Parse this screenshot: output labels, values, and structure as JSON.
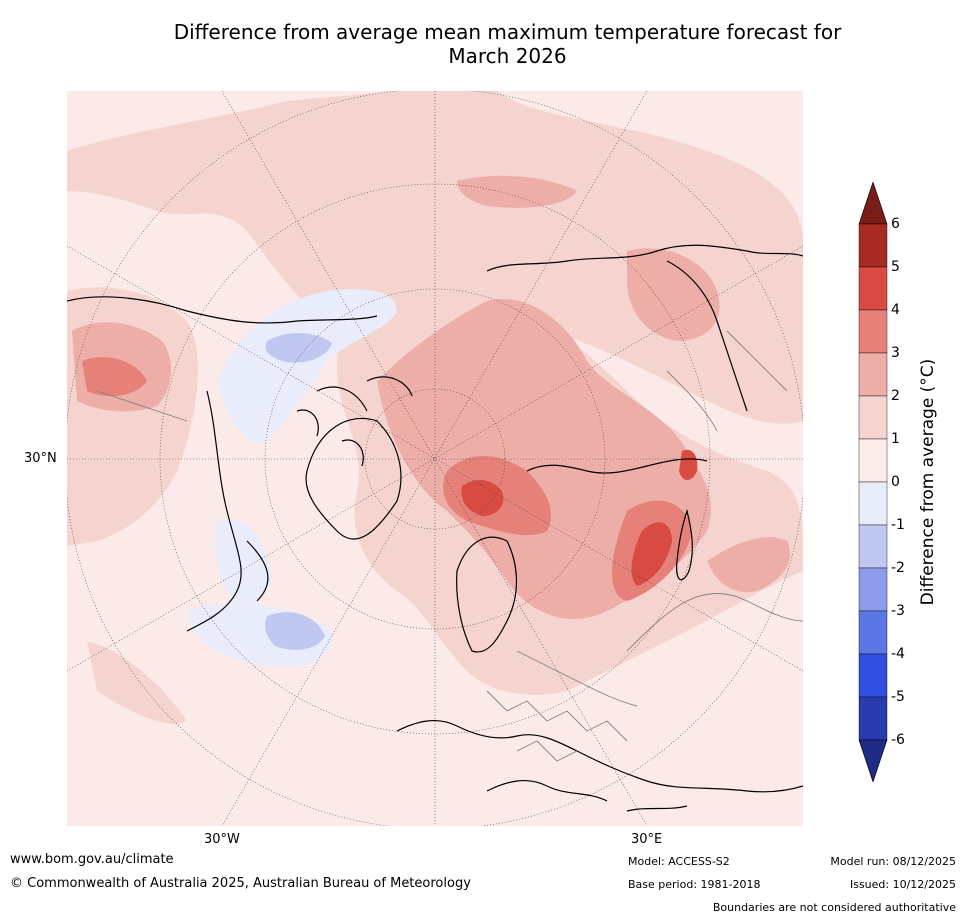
{
  "title_line1": "Difference from average mean maximum temperature forecast for",
  "title_line2": "March 2026",
  "map": {
    "projection": "North Polar Stereographic",
    "lat_label": "30°N",
    "lon_labels": [
      "30°W",
      "30°E"
    ],
    "colors": {
      "ocean_bg": "#fbeae8",
      "land_edge": "#000000",
      "borders": "#808080"
    },
    "regions": [
      {
        "name": "arctic-warm-core",
        "level": "2 to 3"
      },
      {
        "name": "north-pacific-warm",
        "level": "2 to 3"
      },
      {
        "name": "central-russia-warm",
        "level": "3 to 5"
      },
      {
        "name": "canada-cool",
        "level": "-1 to -2"
      },
      {
        "name": "north-atlantic-cool",
        "level": "-1 to -2"
      }
    ]
  },
  "colorbar": {
    "title": "Difference from average (°C)",
    "ticks": [
      "6",
      "5",
      "4",
      "3",
      "2",
      "1",
      "0",
      "-1",
      "-2",
      "-3",
      "-4",
      "-5",
      "-6"
    ],
    "colors": [
      "#a82a24",
      "#d94b42",
      "#e6817a",
      "#eeaea8",
      "#f5d4d0",
      "#fcecea",
      "#e9edfb",
      "#c0c8f1",
      "#8c9cea",
      "#5d76e3",
      "#314fdf",
      "#2a3bb0"
    ],
    "over_color": "#7a1d18",
    "under_color": "#1f2b84"
  },
  "footer": {
    "website": "www.bom.gov.au/climate",
    "copyright": "© Commonwealth of Australia 2025, Australian Bureau of Meteorology",
    "model": "Model: ACCESS-S2",
    "base_period": "Base period: 1981-2018",
    "model_run": "Model run: 08/12/2025",
    "issued": "Issued: 10/12/2025",
    "boundaries": "Boundaries are not considered authoritative"
  }
}
